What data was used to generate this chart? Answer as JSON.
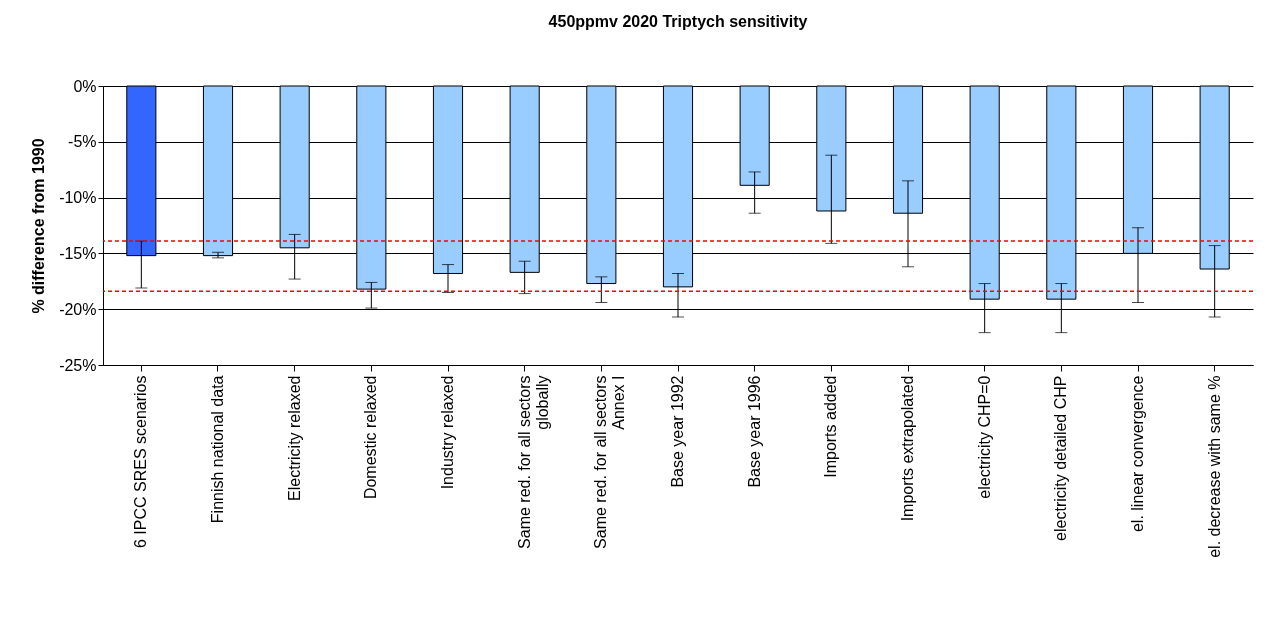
{
  "chart_data": {
    "type": "bar",
    "title": "450ppmv 2020 Triptych sensitivity",
    "ylabel": "% difference from 1990",
    "categories": [
      "6 IPCC SRES scenarios",
      "Finnish national data",
      "Electricity relaxed",
      "Domestic relaxed",
      "Industry relaxed",
      "Same red. for all sectors\nglobally",
      "Same red. for all sectors\nAnnex I",
      "Base year 1992",
      "Base year 1996",
      "Imports added",
      "Imports extrapolated",
      "electricity CHP=0",
      "electricity detailed CHP",
      "el. linear convergence",
      "el. decrease with same %"
    ],
    "values": [
      -15.2,
      -15.2,
      -14.5,
      -18.2,
      -16.8,
      -16.7,
      -17.7,
      -18.0,
      -8.9,
      -11.2,
      -11.4,
      -19.1,
      -19.1,
      -15.0,
      -16.4
    ],
    "colors": [
      "#3366ff",
      "#99ccff",
      "#99ccff",
      "#99ccff",
      "#99ccff",
      "#99ccff",
      "#99ccff",
      "#99ccff",
      "#99ccff",
      "#99ccff",
      "#99ccff",
      "#99ccff",
      "#99ccff",
      "#99ccff",
      "#99ccff"
    ],
    "errors": [
      [
        -18.1,
        -13.9
      ],
      [
        -15.4,
        -14.9
      ],
      [
        -17.3,
        -13.3
      ],
      [
        -19.9,
        -17.6
      ],
      [
        -18.5,
        -16.0
      ],
      [
        -18.6,
        -15.7
      ],
      [
        -19.4,
        -17.1
      ],
      [
        -20.7,
        -16.8
      ],
      [
        -11.4,
        -7.7
      ],
      [
        -14.1,
        -6.2
      ],
      [
        -16.2,
        -8.5
      ],
      [
        -22.1,
        -17.7
      ],
      [
        -22.1,
        -17.7
      ],
      [
        -19.4,
        -12.7
      ],
      [
        -20.7,
        -14.3
      ]
    ],
    "ylim": [
      -25,
      0
    ],
    "yticks": [
      {
        "value": -25,
        "label": "-25%"
      },
      {
        "value": -20,
        "label": "-20%"
      },
      {
        "value": -15,
        "label": "-15%"
      },
      {
        "value": -10,
        "label": "-10%"
      },
      {
        "value": -5,
        "label": "-5%"
      },
      {
        "value": 0,
        "label": "0%"
      }
    ],
    "ref_lines": [
      {
        "axis": "y",
        "value": -13.9,
        "color": "#ff0000",
        "line_style": "dashed"
      },
      {
        "axis": "y",
        "value": -18.4,
        "color": "#ff0000",
        "line_style": "dashed"
      }
    ],
    "grid": "y"
  }
}
